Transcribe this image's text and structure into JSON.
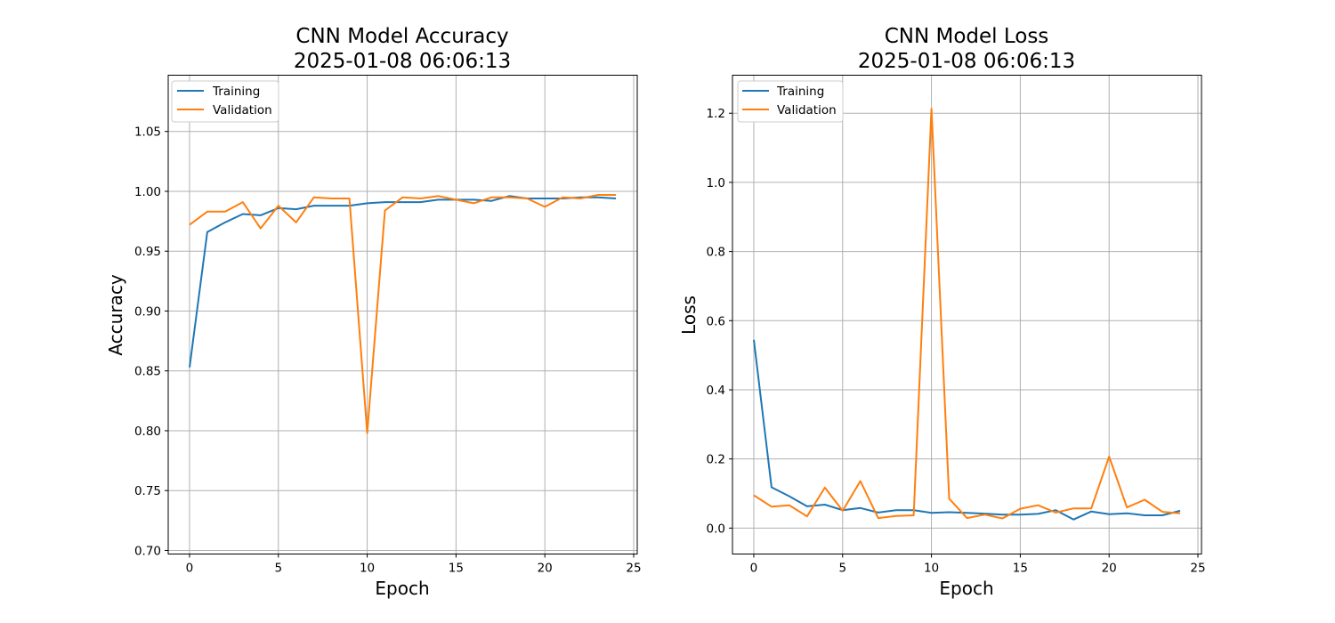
{
  "chart_data": [
    {
      "type": "line",
      "title": "CNN Model Accuracy",
      "subtitle": "2025-01-08 06:06:13",
      "xlabel": "Epoch",
      "ylabel": "Accuracy",
      "xlim": [
        -1.2,
        25.2
      ],
      "ylim": [
        0.697,
        1.097
      ],
      "xticks": [
        0,
        5,
        10,
        15,
        20,
        25
      ],
      "yticks": [
        0.7,
        0.75,
        0.8,
        0.85,
        0.9,
        0.95,
        1.0,
        1.05
      ],
      "ytick_labels": [
        "0.70",
        "0.75",
        "0.80",
        "0.85",
        "0.90",
        "0.95",
        "1.00",
        "1.05"
      ],
      "grid": true,
      "legend_position": "upper-left",
      "x": [
        0,
        1,
        2,
        3,
        4,
        5,
        6,
        7,
        8,
        9,
        10,
        11,
        12,
        13,
        14,
        15,
        16,
        17,
        18,
        19,
        20,
        21,
        22,
        23,
        24
      ],
      "series": [
        {
          "name": "Training",
          "color": "#1f77b4",
          "values": [
            0.853,
            0.966,
            0.974,
            0.981,
            0.98,
            0.986,
            0.985,
            0.988,
            0.988,
            0.988,
            0.99,
            0.991,
            0.991,
            0.991,
            0.993,
            0.993,
            0.993,
            0.992,
            0.996,
            0.994,
            0.994,
            0.994,
            0.995,
            0.995,
            0.994
          ]
        },
        {
          "name": "Validation",
          "color": "#ff7f0e",
          "values": [
            0.972,
            0.983,
            0.983,
            0.991,
            0.969,
            0.988,
            0.974,
            0.995,
            0.994,
            0.994,
            0.798,
            0.984,
            0.995,
            0.994,
            0.996,
            0.993,
            0.99,
            0.995,
            0.995,
            0.994,
            0.987,
            0.995,
            0.994,
            0.997,
            0.997
          ]
        }
      ]
    },
    {
      "type": "line",
      "title": "CNN Model Loss",
      "subtitle": "2025-01-08 06:06:13",
      "xlabel": "Epoch",
      "ylabel": "Loss",
      "xlim": [
        -1.2,
        25.2
      ],
      "ylim": [
        -0.075,
        1.31
      ],
      "xticks": [
        0,
        5,
        10,
        15,
        20,
        25
      ],
      "yticks": [
        0.0,
        0.2,
        0.4,
        0.6,
        0.8,
        1.0,
        1.2
      ],
      "ytick_labels": [
        "0.0",
        "0.2",
        "0.4",
        "0.6",
        "0.8",
        "1.0",
        "1.2"
      ],
      "grid": true,
      "legend_position": "upper-left",
      "x": [
        0,
        1,
        2,
        3,
        4,
        5,
        6,
        7,
        8,
        9,
        10,
        11,
        12,
        13,
        14,
        15,
        16,
        17,
        18,
        19,
        20,
        21,
        22,
        23,
        24
      ],
      "series": [
        {
          "name": "Training",
          "color": "#1f77b4",
          "values": [
            0.545,
            0.118,
            0.092,
            0.063,
            0.068,
            0.052,
            0.058,
            0.045,
            0.052,
            0.052,
            0.044,
            0.046,
            0.044,
            0.042,
            0.039,
            0.039,
            0.041,
            0.052,
            0.025,
            0.048,
            0.04,
            0.043,
            0.037,
            0.037,
            0.05
          ]
        },
        {
          "name": "Validation",
          "color": "#ff7f0e",
          "values": [
            0.095,
            0.062,
            0.066,
            0.034,
            0.117,
            0.05,
            0.136,
            0.029,
            0.035,
            0.037,
            1.213,
            0.085,
            0.029,
            0.039,
            0.028,
            0.056,
            0.066,
            0.045,
            0.057,
            0.057,
            0.207,
            0.06,
            0.082,
            0.047,
            0.043
          ]
        }
      ]
    }
  ]
}
